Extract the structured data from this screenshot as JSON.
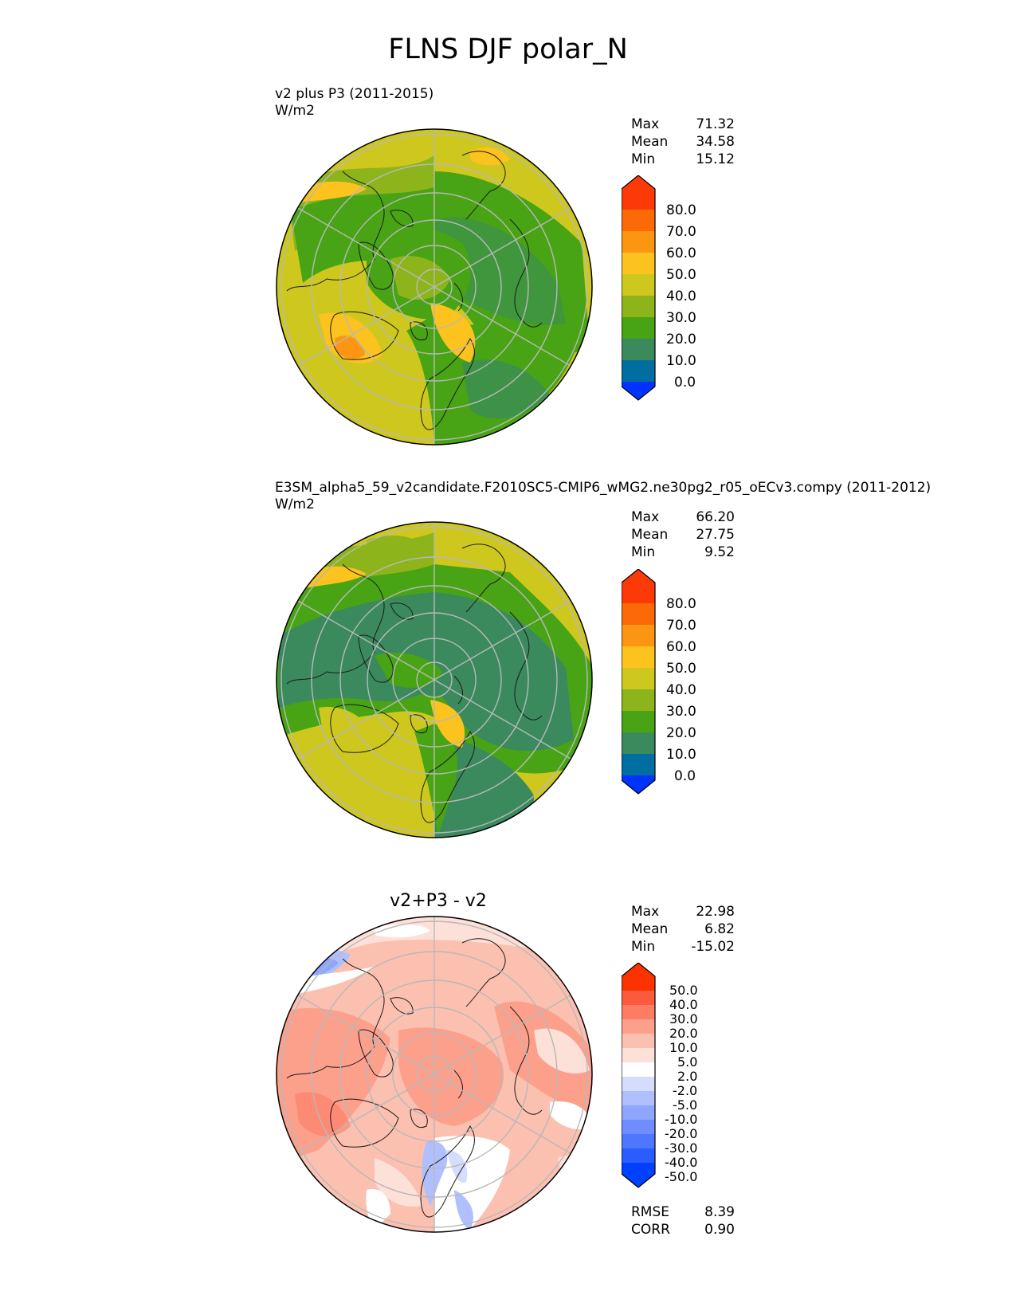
{
  "title": "FLNS DJF polar_N",
  "panels": [
    {
      "title": "v2 plus P3 (2011-2015)",
      "units": "W/m2",
      "stats": [
        {
          "label": "Max",
          "value": "71.32"
        },
        {
          "label": "Mean",
          "value": "34.58"
        },
        {
          "label": "Min",
          "value": "15.12"
        }
      ],
      "colorbar_labels": [
        "80.0",
        "70.0",
        "60.0",
        "50.0",
        "40.0",
        "30.0",
        "20.0",
        "10.0",
        "0.0"
      ]
    },
    {
      "title": "E3SM_alpha5_59_v2candidate.F2010SC5-CMIP6_wMG2.ne30pg2_r05_oECv3.compy (2011-2012)",
      "units": "W/m2",
      "stats": [
        {
          "label": "Max",
          "value": "66.20"
        },
        {
          "label": "Mean",
          "value": "27.75"
        },
        {
          "label": "Min",
          "value": "9.52"
        }
      ],
      "colorbar_labels": [
        "80.0",
        "70.0",
        "60.0",
        "50.0",
        "40.0",
        "30.0",
        "20.0",
        "10.0",
        "0.0"
      ]
    },
    {
      "title": "v2+P3 - v2",
      "units": "",
      "stats": [
        {
          "label": "Max",
          "value": "22.98"
        },
        {
          "label": "Mean",
          "value": "6.82"
        },
        {
          "label": "Min",
          "value": "-15.02"
        }
      ],
      "colorbar_labels": [
        "50.0",
        "40.0",
        "30.0",
        "20.0",
        "10.0",
        "5.0",
        "2.0",
        "-2.0",
        "-5.0",
        "-10.0",
        "-20.0",
        "-30.0",
        "-40.0",
        "-50.0"
      ],
      "metrics": [
        {
          "label": "RMSE",
          "value": "8.39"
        },
        {
          "label": "CORR",
          "value": "0.90"
        }
      ]
    }
  ],
  "colors": {
    "abs_scale": [
      "#0033ff",
      "#006ea0",
      "#3a8a5e",
      "#48a414",
      "#8eb41c",
      "#cec81e",
      "#fcc21e",
      "#fc9612",
      "#fc6a08",
      "#fc3a08"
    ],
    "diff_scale": [
      "#0040ff",
      "#2a5cff",
      "#4e76ff",
      "#6e8eff",
      "#8ea6ff",
      "#b0c0ff",
      "#d4ddfc",
      "#ffffff",
      "#fde0d8",
      "#fcc0b0",
      "#fca08c",
      "#fc7c64",
      "#fc5a3e",
      "#fc3200"
    ],
    "ocean_arctic": "#cec81e"
  }
}
